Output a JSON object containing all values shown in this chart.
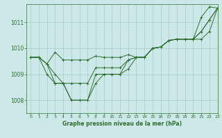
{
  "title": "Graphe pression niveau de la mer (hPa)",
  "background_color": "#cce8e8",
  "grid_color": "#aacccc",
  "line_color": "#2d6e2d",
  "xlim": [
    -0.5,
    23
  ],
  "ylim": [
    1007.5,
    1011.7
  ],
  "yticks": [
    1008,
    1009,
    1010,
    1011
  ],
  "xticks": [
    0,
    1,
    2,
    3,
    4,
    5,
    6,
    7,
    8,
    9,
    10,
    11,
    12,
    13,
    14,
    15,
    16,
    17,
    18,
    19,
    20,
    21,
    22,
    23
  ],
  "series": [
    [
      1009.65,
      1009.65,
      1009.4,
      1009.85,
      1009.55,
      1009.55,
      1009.55,
      1009.55,
      1009.7,
      1009.65,
      1009.65,
      1009.65,
      1009.75,
      1009.65,
      1009.65,
      1010.0,
      1010.05,
      1010.3,
      1010.35,
      1010.35,
      1010.35,
      1010.35,
      1010.65,
      1011.55
    ],
    [
      1009.65,
      1009.65,
      1009.0,
      1008.65,
      1008.65,
      1008.65,
      1008.65,
      1008.65,
      1009.25,
      1009.25,
      1009.25,
      1009.25,
      1009.55,
      1009.65,
      1009.65,
      1010.0,
      1010.05,
      1010.3,
      1010.35,
      1010.35,
      1010.35,
      1010.65,
      1011.1,
      1011.55
    ],
    [
      1009.65,
      1009.65,
      1009.4,
      1009.0,
      1008.65,
      1008.0,
      1008.0,
      1008.0,
      1008.65,
      1009.0,
      1009.0,
      1009.0,
      1009.55,
      1009.65,
      1009.65,
      1010.0,
      1010.05,
      1010.3,
      1010.35,
      1010.35,
      1010.35,
      1011.2,
      1011.6,
      1011.55
    ],
    [
      1009.65,
      1009.65,
      1009.4,
      1008.65,
      1008.65,
      1008.0,
      1008.0,
      1008.0,
      1009.0,
      1009.0,
      1009.0,
      1009.0,
      1009.2,
      1009.65,
      1009.65,
      1010.0,
      1010.05,
      1010.3,
      1010.35,
      1010.35,
      1010.35,
      1010.65,
      1011.1,
      1011.55
    ]
  ]
}
